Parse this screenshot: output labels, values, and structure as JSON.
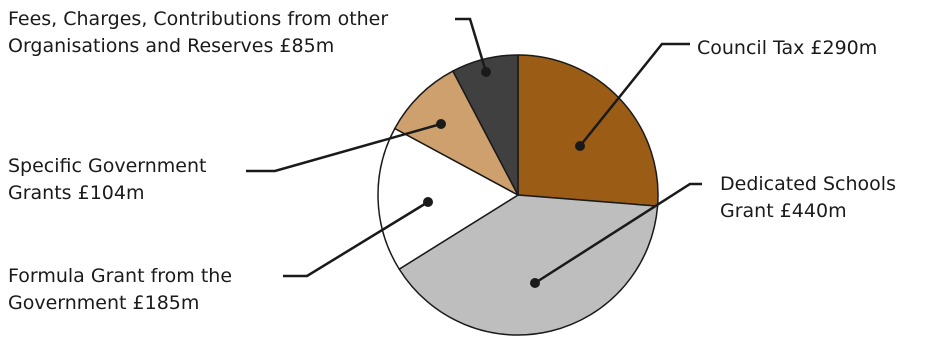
{
  "chart_data": {
    "type": "pie",
    "title": "",
    "unit": "£m",
    "slices": [
      {
        "id": "council-tax",
        "label_lines": [
          "Council Tax  £290m"
        ],
        "value": 290,
        "color": "#9b5d16"
      },
      {
        "id": "dedicated-schools-grant",
        "label_lines": [
          "Dedicated Schools",
          "Grant  £440m"
        ],
        "value": 440,
        "color": "#bebebe"
      },
      {
        "id": "formula-grant",
        "label_lines": [
          "Formula Grant from the",
          "Government  £185m"
        ],
        "value": 185,
        "color": "#ffffff"
      },
      {
        "id": "specific-government-grants",
        "label_lines": [
          "Specific Government",
          "Grants  £104m"
        ],
        "value": 104,
        "color": "#cda06e"
      },
      {
        "id": "fees-charges-reserves",
        "label_lines": [
          "Fees, Charges, Contributions from other",
          "Organisations and Reserves  £85m"
        ],
        "value": 85,
        "color": "#404040"
      }
    ],
    "start_angle_deg": 90,
    "direction": "clockwise",
    "legend": "callout-labels"
  }
}
